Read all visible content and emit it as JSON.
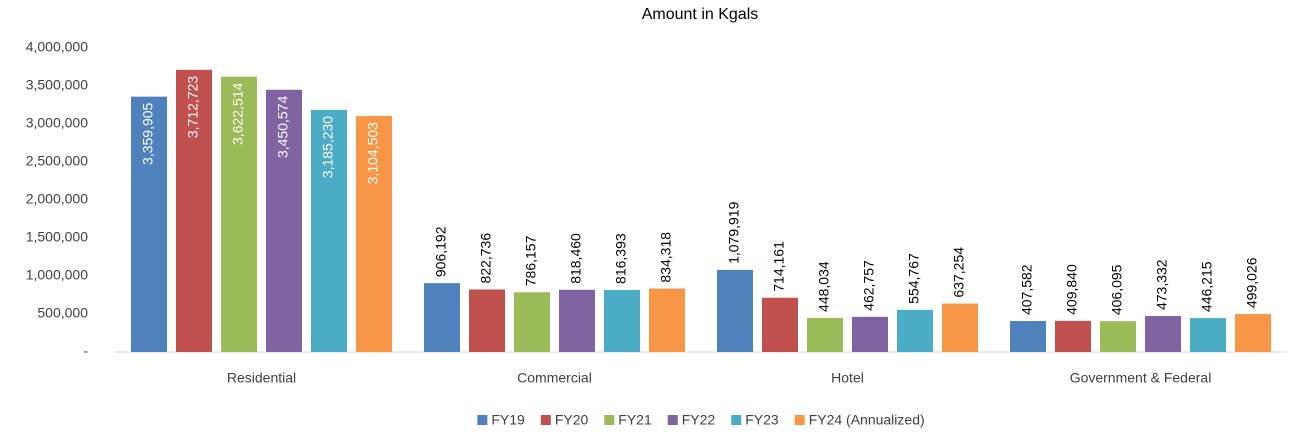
{
  "chart_data": {
    "type": "bar",
    "title": "Amount in Kgals",
    "categories": [
      "Residential",
      "Commercial",
      "Hotel",
      "Government & Federal"
    ],
    "series": [
      {
        "name": "FY19",
        "color": "#4f81bd",
        "values": [
          3359905,
          906192,
          1079919,
          407582
        ],
        "value_labels": [
          "3,359,905",
          "906,192",
          "1,079,919",
          "407,582"
        ]
      },
      {
        "name": "FY20",
        "color": "#c0504d",
        "values": [
          3712723,
          822736,
          714161,
          409840
        ],
        "value_labels": [
          "3,712,723",
          "822,736",
          "714,161",
          "409,840"
        ]
      },
      {
        "name": "FY21",
        "color": "#9bbb59",
        "values": [
          3622514,
          786157,
          448034,
          406095
        ],
        "value_labels": [
          "3,622,514",
          "786,157",
          "448,034",
          "406,095"
        ]
      },
      {
        "name": "FY22",
        "color": "#8064a2",
        "values": [
          3450574,
          818460,
          462757,
          473332
        ],
        "value_labels": [
          "3,450,574",
          "818,460",
          "462,757",
          "473,332"
        ]
      },
      {
        "name": "FY23",
        "color": "#4bacc6",
        "values": [
          3185230,
          816393,
          554767,
          446215
        ],
        "value_labels": [
          "3,185,230",
          "816,393",
          "554,767",
          "446,215"
        ]
      },
      {
        "name": "FY24 (Annualized)",
        "color": "#f79646",
        "values": [
          3104503,
          834318,
          637254,
          499026
        ],
        "value_labels": [
          "3,104,503",
          "834,318",
          "637,254",
          "499,026"
        ]
      }
    ],
    "ylim": [
      0,
      4000000
    ],
    "yticks": [
      {
        "value": 0,
        "label": "-"
      },
      {
        "value": 500000,
        "label": "500,000"
      },
      {
        "value": 1000000,
        "label": "1,000,000"
      },
      {
        "value": 1500000,
        "label": "1,500,000"
      },
      {
        "value": 2000000,
        "label": "2,000,000"
      },
      {
        "value": 2500000,
        "label": "2,500,000"
      },
      {
        "value": 3000000,
        "label": "3,000,000"
      },
      {
        "value": 3500000,
        "label": "3,500,000"
      },
      {
        "value": 4000000,
        "label": "4,000,000"
      }
    ],
    "grid": false,
    "legend": "bottom"
  }
}
